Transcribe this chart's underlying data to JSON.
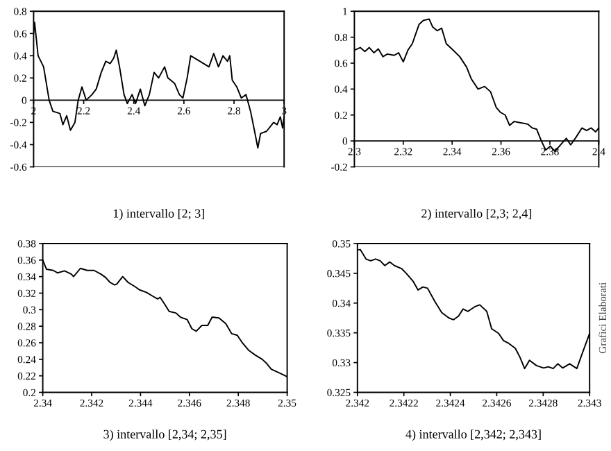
{
  "chart_data": [
    {
      "type": "line",
      "title": "1) intervallo [2; 3]",
      "xlim": [
        2,
        3
      ],
      "xticks": [
        2,
        2.2,
        2.4,
        2.6,
        2.8,
        3
      ],
      "ylim": [
        -0.6,
        0.8
      ],
      "yticks": [
        -0.6,
        -0.4,
        -0.2,
        0,
        0.2,
        0.4,
        0.6,
        0.8
      ],
      "grid": false,
      "legend": false,
      "marker": "none",
      "line_style": "solid",
      "series": [
        {
          "color": "#000000",
          "x": [
            2.0,
            2.004,
            2.018,
            2.04,
            2.062,
            2.077,
            2.105,
            2.117,
            2.132,
            2.147,
            2.165,
            2.178,
            2.193,
            2.21,
            2.233,
            2.25,
            2.27,
            2.288,
            2.306,
            2.32,
            2.33,
            2.343,
            2.361,
            2.374,
            2.393,
            2.407,
            2.426,
            2.444,
            2.462,
            2.481,
            2.499,
            2.523,
            2.536,
            2.563,
            2.582,
            2.596,
            2.613,
            2.627,
            2.664,
            2.7,
            2.719,
            2.738,
            2.756,
            2.774,
            2.783,
            2.793,
            2.811,
            2.829,
            2.848,
            2.866,
            2.884,
            2.895,
            2.906,
            2.93,
            2.958,
            2.972,
            2.985,
            2.994,
            3.0
          ],
          "values": [
            0.6,
            0.7,
            0.4,
            0.3,
            0.0,
            -0.1,
            -0.12,
            -0.22,
            -0.14,
            -0.27,
            -0.2,
            0.0,
            0.12,
            0.0,
            0.05,
            0.1,
            0.25,
            0.35,
            0.33,
            0.38,
            0.45,
            0.3,
            0.05,
            -0.03,
            0.05,
            -0.03,
            0.1,
            -0.05,
            0.05,
            0.25,
            0.2,
            0.3,
            0.2,
            0.15,
            0.05,
            0.02,
            0.2,
            0.4,
            0.35,
            0.3,
            0.42,
            0.3,
            0.4,
            0.35,
            0.4,
            0.18,
            0.12,
            0.02,
            0.05,
            -0.1,
            -0.3,
            -0.43,
            -0.3,
            -0.28,
            -0.2,
            -0.22,
            -0.15,
            -0.25,
            -0.15
          ]
        }
      ]
    },
    {
      "type": "line",
      "title": "2) intervallo [2,3; 2,4]",
      "xlim": [
        2.3,
        2.4
      ],
      "xticks": [
        2.3,
        2.32,
        2.34,
        2.36,
        2.38,
        2.4
      ],
      "ylim": [
        -0.2,
        1
      ],
      "yticks": [
        -0.2,
        0,
        0.2,
        0.4,
        0.6,
        0.8,
        1
      ],
      "grid": false,
      "legend": false,
      "marker": "none",
      "line_style": "solid",
      "series": [
        {
          "color": "#000000",
          "x": [
            2.3,
            2.3024,
            2.3043,
            2.3061,
            2.308,
            2.3098,
            2.3117,
            2.3135,
            2.3163,
            2.3181,
            2.32,
            2.3219,
            2.3237,
            2.325,
            2.3265,
            2.3283,
            2.3306,
            2.332,
            2.3339,
            2.3357,
            2.3376,
            2.3404,
            2.3431,
            2.3459,
            2.3478,
            2.3506,
            2.3533,
            2.3557,
            2.358,
            2.3598,
            2.3617,
            2.3635,
            2.3654,
            2.3681,
            2.3709,
            2.3728,
            2.3746,
            2.3765,
            2.3783,
            2.3802,
            2.382,
            2.3839,
            2.3867,
            2.3885,
            2.3904,
            2.3931,
            2.395,
            2.3969,
            2.3987,
            2.4
          ],
          "values": [
            0.7,
            0.72,
            0.69,
            0.72,
            0.68,
            0.71,
            0.65,
            0.67,
            0.66,
            0.68,
            0.61,
            0.7,
            0.75,
            0.82,
            0.9,
            0.93,
            0.94,
            0.88,
            0.85,
            0.87,
            0.75,
            0.7,
            0.65,
            0.57,
            0.48,
            0.4,
            0.42,
            0.38,
            0.26,
            0.22,
            0.2,
            0.12,
            0.15,
            0.14,
            0.13,
            0.1,
            0.09,
            0.0,
            -0.07,
            -0.04,
            -0.08,
            -0.04,
            0.02,
            -0.03,
            0.02,
            0.1,
            0.08,
            0.1,
            0.07,
            0.1
          ]
        }
      ]
    },
    {
      "type": "line",
      "title": "3) intervallo [2,34; 2,35]",
      "xlim": [
        2.34,
        2.35
      ],
      "xticks": [
        2.34,
        2.342,
        2.344,
        2.346,
        2.348,
        2.35
      ],
      "ylim": [
        0.2,
        0.38
      ],
      "yticks": [
        0.2,
        0.22,
        0.24,
        0.26,
        0.28,
        0.3,
        0.32,
        0.34,
        0.36,
        0.38
      ],
      "grid": false,
      "legend": false,
      "marker": "none",
      "line_style": "solid",
      "series": [
        {
          "color": "#000000",
          "x": [
            2.34,
            2.34015,
            2.34043,
            2.34061,
            2.34089,
            2.34117,
            2.34126,
            2.34154,
            2.34182,
            2.3421,
            2.34238,
            2.34257,
            2.34275,
            2.34294,
            2.34303,
            2.34327,
            2.34349,
            2.34377,
            2.34396,
            2.34424,
            2.34452,
            2.3447,
            2.3448,
            2.34498,
            2.34517,
            2.34545,
            2.34563,
            2.34591,
            2.3461,
            2.34628,
            2.34651,
            2.34675,
            2.34693,
            2.34721,
            2.34749,
            2.34773,
            2.34796,
            2.34814,
            2.34842,
            2.3487,
            2.34898,
            2.34916,
            2.34935,
            2.34972,
            2.35
          ],
          "values": [
            0.36,
            0.349,
            0.3475,
            0.3445,
            0.347,
            0.343,
            0.34,
            0.35,
            0.3475,
            0.3475,
            0.343,
            0.339,
            0.333,
            0.33,
            0.331,
            0.34,
            0.333,
            0.328,
            0.324,
            0.321,
            0.316,
            0.313,
            0.315,
            0.307,
            0.298,
            0.296,
            0.291,
            0.288,
            0.277,
            0.274,
            0.281,
            0.281,
            0.291,
            0.29,
            0.283,
            0.271,
            0.269,
            0.261,
            0.251,
            0.245,
            0.24,
            0.235,
            0.228,
            0.223,
            0.219
          ]
        }
      ]
    },
    {
      "type": "line",
      "title": "4) intervallo [2,342; 2,343]",
      "annotations": [
        "Grafici Elaborati"
      ],
      "xlim": [
        2.342,
        2.343
      ],
      "xticks": [
        2.342,
        2.3422,
        2.3424,
        2.3426,
        2.3428,
        2.343
      ],
      "ylim": [
        0.325,
        0.35
      ],
      "yticks": [
        0.325,
        0.33,
        0.335,
        0.34,
        0.345,
        0.35
      ],
      "grid": false,
      "legend": false,
      "marker": "none",
      "line_style": "solid",
      "series": [
        {
          "color": "#000000",
          "x": [
            2.342,
            2.342012,
            2.342037,
            2.342057,
            2.342078,
            2.342098,
            2.342118,
            2.342139,
            2.342159,
            2.34219,
            2.34221,
            2.342241,
            2.342261,
            2.342282,
            2.342302,
            2.342333,
            2.342363,
            2.342394,
            2.342414,
            2.342435,
            2.342455,
            2.342476,
            2.342506,
            2.342527,
            2.342557,
            2.342578,
            2.342608,
            2.342629,
            2.342649,
            2.34268,
            2.3427,
            2.34272,
            2.342741,
            2.342771,
            2.342802,
            2.342822,
            2.342843,
            2.342863,
            2.342884,
            2.342914,
            2.342945,
            2.342965,
            2.343
          ],
          "values": [
            0.3489,
            0.349,
            0.3474,
            0.3471,
            0.3474,
            0.3471,
            0.3463,
            0.3469,
            0.3463,
            0.3458,
            0.345,
            0.3436,
            0.3422,
            0.3427,
            0.3425,
            0.3403,
            0.3384,
            0.3375,
            0.3372,
            0.3378,
            0.339,
            0.3386,
            0.3394,
            0.3397,
            0.3386,
            0.3357,
            0.3349,
            0.3337,
            0.3333,
            0.3324,
            0.3309,
            0.329,
            0.3304,
            0.3295,
            0.3291,
            0.3293,
            0.329,
            0.3298,
            0.3291,
            0.3298,
            0.329,
            0.3312,
            0.3349
          ]
        }
      ]
    }
  ]
}
